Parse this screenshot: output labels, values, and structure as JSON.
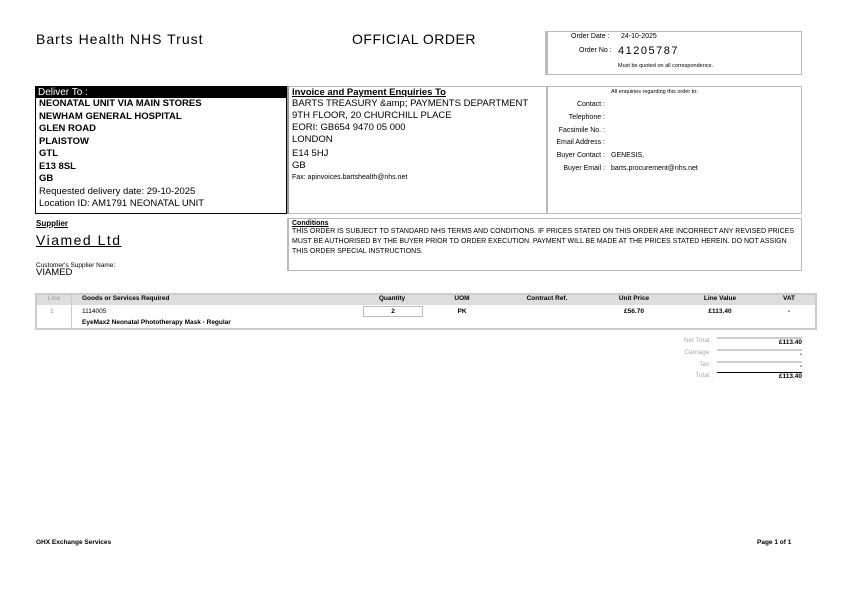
{
  "header": {
    "org": "Barts Health NHS Trust",
    "title": "OFFICIAL ORDER",
    "order_date_label": "Order Date :",
    "order_date": "24-10-2025",
    "order_no_label": "Order No :",
    "order_no": "41205787",
    "quote_note": "Must be quoted on all correspondence."
  },
  "deliver": {
    "heading": "Deliver To :",
    "lines": [
      "NEONATAL UNIT VIA MAIN STORES",
      "NEWHAM GENERAL HOSPITAL",
      "GLEN ROAD",
      "PLAISTOW",
      "GTL",
      "E13 8SL",
      "GB"
    ],
    "requested": "Requested delivery date: 29-10-2025",
    "location": "Location ID: AM1791 NEONATAL UNIT"
  },
  "invoice": {
    "heading": "Invoice and Payment Enquiries To",
    "lines": [
      "BARTS TREASURY &amp; PAYMENTS DEPARTMENT",
      "9TH FLOOR, 20 CHURCHILL PLACE",
      "EORI: GB654 9470 05 000",
      "LONDON",
      "E14 5HJ",
      "GB"
    ],
    "fax": "Fax: apinvoices.bartshealth@nhs.net"
  },
  "enquiries": {
    "heading": "All enquiries regarding this order to:",
    "fields": [
      {
        "label": "Contact :",
        "value": ""
      },
      {
        "label": "Telephone :",
        "value": ""
      },
      {
        "label": "Facsimile No. :",
        "value": ""
      },
      {
        "label": "Email Address :",
        "value": ""
      },
      {
        "label": "Buyer Contact :",
        "value": "GENESIS,"
      },
      {
        "label": "Buyer Email :",
        "value": "barts.procurement@nhs.net"
      }
    ]
  },
  "supplier": {
    "heading": "Supplier",
    "name": "Viamed Ltd",
    "customer_label": "Customer's Supplier Name:",
    "customer_name": "VIAMED"
  },
  "conditions": {
    "heading": "Conditions",
    "text": "THIS ORDER IS SUBJECT TO STANDARD NHS TERMS AND CONDITIONS. IF PRICES STATED ON THIS ORDER ARE INCORRECT ANY REVISED PRICES MUST BE AUTHORISED BY THE BUYER PRIOR TO ORDER EXECUTION. PAYMENT WILL BE MADE AT THE PRICES STATED HEREIN. DO NOT ASSIGN THIS ORDER SPECIAL INSTRUCTIONS."
  },
  "table": {
    "headers": [
      "Line",
      "Goods or Services Required",
      "Quantity",
      "UOM",
      "Contract Ref.",
      "Unit Price",
      "Line Value",
      "VAT"
    ],
    "rows": [
      {
        "line": "1",
        "code": "1114005",
        "description": "EyeMax2 Neonatal Phototherapy Mask - Regular",
        "quantity": "2",
        "uom": "PK",
        "contract": "",
        "unit_price": "£56.70",
        "line_value": "£113.40",
        "vat": "-"
      }
    ]
  },
  "totals": [
    {
      "label": "Net Total :",
      "value": "£113.40"
    },
    {
      "label": "Carriage :",
      "value": "-"
    },
    {
      "label": "Tax :",
      "value": "-"
    },
    {
      "label": "Total :",
      "value": "£113.40"
    }
  ],
  "footer": {
    "left": "GHX Exchange Services",
    "right": "Page 1 of 1"
  }
}
